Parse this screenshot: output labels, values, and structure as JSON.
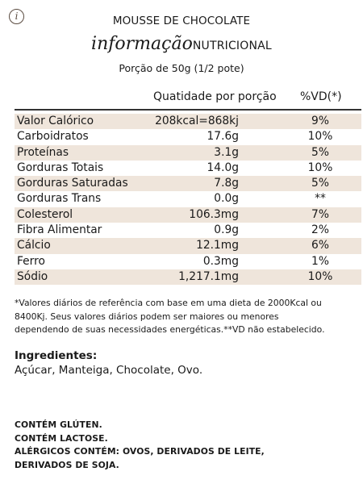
{
  "header": {
    "info_icon": "i",
    "title": "MOUSSE DE CHOCOLATE",
    "subtitle_script": "informação",
    "subtitle_caps": "NUTRICIONAL",
    "portion": "Porção de 50g (1/2 pote)"
  },
  "table": {
    "col_quantity": "Quatidade por porção",
    "col_vd": "%VD(*)",
    "shade_color": "#efe5db",
    "rows": [
      {
        "name": "Valor Calórico",
        "qty": "208kcal=868kj",
        "vd": "9%"
      },
      {
        "name": "Carboidratos",
        "qty": "17.6g",
        "vd": "10%"
      },
      {
        "name": "Proteínas",
        "qty": "3.1g",
        "vd": "5%"
      },
      {
        "name": "Gorduras Totais",
        "qty": "14.0g",
        "vd": "10%"
      },
      {
        "name": "Gorduras Saturadas",
        "qty": "7.8g",
        "vd": "5%"
      },
      {
        "name": "Gorduras Trans",
        "qty": "0.0g",
        "vd": "**"
      },
      {
        "name": "Colesterol",
        "qty": "106.3mg",
        "vd": "7%"
      },
      {
        "name": "Fibra Alimentar",
        "qty": "0.9g",
        "vd": "2%"
      },
      {
        "name": "Cálcio",
        "qty": "12.1mg",
        "vd": "6%"
      },
      {
        "name": "Ferro",
        "qty": "0.3mg",
        "vd": "1%"
      },
      {
        "name": "Sódio",
        "qty": "1,217.1mg",
        "vd": "10%"
      }
    ]
  },
  "footnote": {
    "line1": "*Valores diários de referência com base em uma dieta de 2000Kcal ou",
    "line2": "8400Kj. Seus valores diários podem ser maiores ou menores",
    "line3": "dependendo de suas necessidades energéticas.**VD não estabelecido."
  },
  "ingredients": {
    "title": "Ingredientes:",
    "text": "Açúcar, Manteiga, Chocolate, Ovo."
  },
  "allergens": {
    "line1": "CONTÉM GLÚTEN.",
    "line2": "CONTÉM LACTOSE.",
    "line3": "ALÉRGICOS CONTÉM: OVOS, DERIVADOS DE LEITE,",
    "line4": "DERIVADOS DE SOJA."
  }
}
